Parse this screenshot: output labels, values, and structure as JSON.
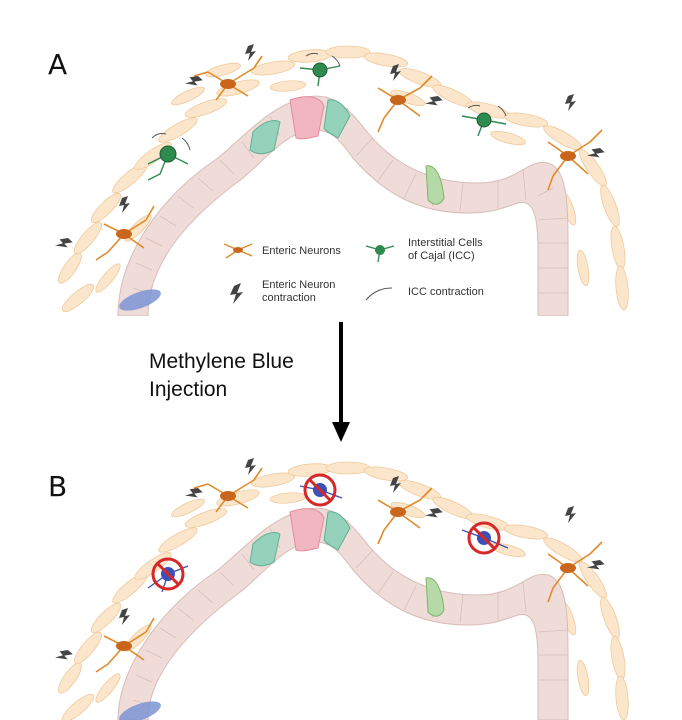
{
  "panel_a": {
    "label": "A",
    "legend": {
      "enteric_neurons": "Enteric Neurons",
      "icc_line1": "Interstitial Cells",
      "icc_line2": "of Cajal (ICC)",
      "neuron_contraction_line1": "Enteric Neuron",
      "neuron_contraction_line2": "contraction",
      "icc_contraction": "ICC contraction"
    }
  },
  "transition": {
    "line1": "Methylene Blue",
    "line2": "Injection"
  },
  "panel_b": {
    "label": "B"
  },
  "colors": {
    "neuron": "#e08a2a",
    "neuron_body": "#c9661b",
    "icc": "#2f8a4f",
    "icc_blocked": "#3b4fb8",
    "prohibit": "#d62828",
    "smooth_muscle": "#fbe3c4",
    "epithelium": "#ecdad8",
    "goblet": "#8fd0b7",
    "paneth": "#f2b3bf"
  }
}
